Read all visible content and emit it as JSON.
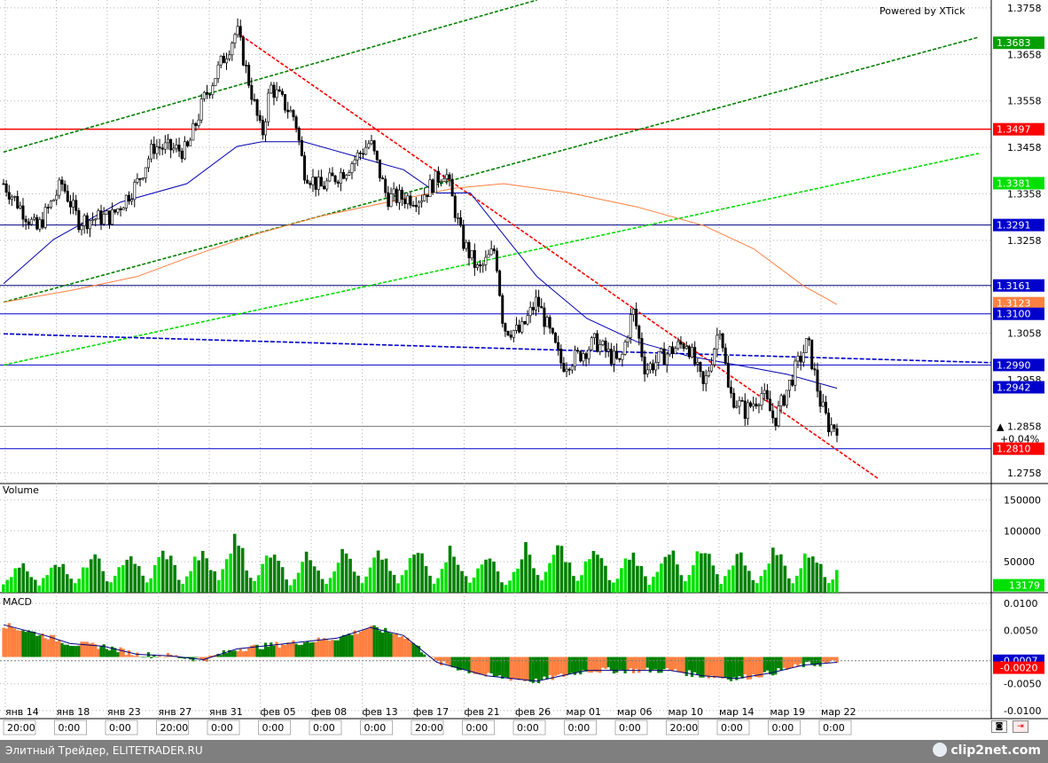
{
  "watermark": "Powered by XTick",
  "panels": {
    "volume": "Volume",
    "macd": "MACD"
  },
  "footer": {
    "left": "Элитный Трейдер, ELITETRADER.RU",
    "logo": "clip2net.com"
  },
  "icons": [
    "camera-icon",
    "exit-icon"
  ],
  "chart_data": {
    "type": "candlestick",
    "price_axis": {
      "ticks": [
        "1.3758",
        "1.3658",
        "1.3558",
        "1.3458",
        "1.3358",
        "1.3258",
        "1.3158",
        "1.3058",
        "1.2958",
        "1.2858",
        "1.2758"
      ],
      "range": [
        1.2735,
        1.3775
      ]
    },
    "price_tags": [
      {
        "value": 1.3683,
        "text": "1.3683",
        "bg": "#00a000",
        "fg": "#ffffff"
      },
      {
        "value": 1.3497,
        "text": "1.3497",
        "bg": "#ff0000",
        "fg": "#ffffff"
      },
      {
        "value": 1.3381,
        "text": "1.3381",
        "bg": "#00e000",
        "fg": "#ffffff"
      },
      {
        "value": 1.3291,
        "text": "1.3291",
        "bg": "#0000cc",
        "fg": "#ffffff"
      },
      {
        "value": 1.3161,
        "text": "1.3161",
        "bg": "#0000cc",
        "fg": "#ffffff"
      },
      {
        "value": 1.3123,
        "text": "1.3123",
        "bg": "#ff8040",
        "fg": "#ffffff"
      },
      {
        "value": 1.31,
        "text": "1.3100",
        "bg": "#0000cc",
        "fg": "#ffffff"
      },
      {
        "value": 1.299,
        "text": "1.2990",
        "bg": "#0000cc",
        "fg": "#ffffff"
      },
      {
        "value": 1.2942,
        "text": "1.2942",
        "bg": "#0000cc",
        "fg": "#ffffff"
      },
      {
        "value": 1.2858,
        "text": "1.2858",
        "bg": "#ffffff",
        "fg": "#000000",
        "marker": "▲"
      },
      {
        "value": 1.281,
        "text": "1.2810",
        "bg": "#ff0000",
        "fg": "#ffffff"
      }
    ],
    "change_text": "+0.04%",
    "horizontal_levels": [
      {
        "value": 1.3497,
        "color": "#ff0000"
      },
      {
        "value": 1.3291,
        "color": "#000080"
      },
      {
        "value": 1.3161,
        "color": "#000080"
      },
      {
        "value": 1.31,
        "color": "#0000cc"
      },
      {
        "value": 1.299,
        "color": "#0000cc"
      },
      {
        "value": 1.2858,
        "color": "#808080"
      },
      {
        "value": 1.281,
        "color": "#0000cc"
      }
    ],
    "ohlc_anchors": [
      {
        "t": 0,
        "v": 1.338
      },
      {
        "t": 0.04,
        "v": 1.328
      },
      {
        "t": 0.07,
        "v": 1.338
      },
      {
        "t": 0.09,
        "v": 1.33
      },
      {
        "t": 0.13,
        "v": 1.331
      },
      {
        "t": 0.16,
        "v": 1.338
      },
      {
        "t": 0.18,
        "v": 1.346
      },
      {
        "t": 0.22,
        "v": 1.345
      },
      {
        "t": 0.24,
        "v": 1.356
      },
      {
        "t": 0.28,
        "v": 1.371
      },
      {
        "t": 0.31,
        "v": 1.348
      },
      {
        "t": 0.32,
        "v": 1.359
      },
      {
        "t": 0.35,
        "v": 1.352
      },
      {
        "t": 0.36,
        "v": 1.341
      },
      {
        "t": 0.38,
        "v": 1.337
      },
      {
        "t": 0.41,
        "v": 1.341
      },
      {
        "t": 0.44,
        "v": 1.347
      },
      {
        "t": 0.46,
        "v": 1.335
      },
      {
        "t": 0.5,
        "v": 1.335
      },
      {
        "t": 0.53,
        "v": 1.341
      },
      {
        "t": 0.55,
        "v": 1.326
      },
      {
        "t": 0.57,
        "v": 1.319
      },
      {
        "t": 0.59,
        "v": 1.324
      },
      {
        "t": 0.6,
        "v": 1.307
      },
      {
        "t": 0.62,
        "v": 1.306
      },
      {
        "t": 0.64,
        "v": 1.313
      },
      {
        "t": 0.67,
        "v": 1.299
      },
      {
        "t": 0.69,
        "v": 1.301
      },
      {
        "t": 0.71,
        "v": 1.304
      },
      {
        "t": 0.74,
        "v": 1.299
      },
      {
        "t": 0.755,
        "v": 1.311
      },
      {
        "t": 0.77,
        "v": 1.298
      },
      {
        "t": 0.8,
        "v": 1.302
      },
      {
        "t": 0.82,
        "v": 1.304
      },
      {
        "t": 0.84,
        "v": 1.294
      },
      {
        "t": 0.86,
        "v": 1.308
      },
      {
        "t": 0.87,
        "v": 1.293
      },
      {
        "t": 0.89,
        "v": 1.289
      },
      {
        "t": 0.91,
        "v": 1.293
      },
      {
        "t": 0.925,
        "v": 1.287
      },
      {
        "t": 0.95,
        "v": 1.298
      },
      {
        "t": 0.965,
        "v": 1.304
      },
      {
        "t": 0.98,
        "v": 1.291
      },
      {
        "t": 0.99,
        "v": 1.286
      },
      {
        "t": 1.0,
        "v": 1.2858
      }
    ],
    "moving_average_blue": [
      [
        0.0,
        1.3165
      ],
      [
        0.06,
        1.326
      ],
      [
        0.14,
        1.334
      ],
      [
        0.22,
        1.338
      ],
      [
        0.28,
        1.346
      ],
      [
        0.31,
        1.347
      ],
      [
        0.36,
        1.347
      ],
      [
        0.42,
        1.344
      ],
      [
        0.48,
        1.341
      ],
      [
        0.52,
        1.336
      ],
      [
        0.56,
        1.336
      ],
      [
        0.6,
        1.327
      ],
      [
        0.64,
        1.318
      ],
      [
        0.7,
        1.309
      ],
      [
        0.76,
        1.304
      ],
      [
        0.82,
        1.301
      ],
      [
        0.88,
        1.299
      ],
      [
        0.94,
        1.297
      ],
      [
        1.0,
        1.294
      ]
    ],
    "moving_average_orange": [
      [
        0.0,
        1.3125
      ],
      [
        0.08,
        1.315
      ],
      [
        0.16,
        1.318
      ],
      [
        0.22,
        1.322
      ],
      [
        0.3,
        1.327
      ],
      [
        0.38,
        1.331
      ],
      [
        0.46,
        1.334
      ],
      [
        0.54,
        1.337
      ],
      [
        0.6,
        1.338
      ],
      [
        0.68,
        1.336
      ],
      [
        0.76,
        1.333
      ],
      [
        0.84,
        1.329
      ],
      [
        0.9,
        1.324
      ],
      [
        0.96,
        1.316
      ],
      [
        1.0,
        1.312
      ]
    ],
    "dashed_blue_line": [
      [
        0.0,
        1.3057
      ],
      [
        1.0,
        1.3
      ]
    ],
    "trend_lines": [
      {
        "color": "#008000",
        "from": [
          0.0,
          1.3448
        ],
        "to": [
          0.64,
          1.3775
        ]
      },
      {
        "color": "#008000",
        "from": [
          0.0,
          1.3125
        ],
        "to": [
          1.17,
          1.3695
        ]
      },
      {
        "color": "#00dd00",
        "from": [
          0.0,
          1.299
        ],
        "to": [
          1.17,
          1.3445
        ]
      },
      {
        "color": "#ff0000",
        "from": [
          0.28,
          1.3705
        ],
        "to": [
          1.05,
          1.2745
        ]
      }
    ],
    "volume_axis": {
      "ticks": [
        "150000",
        "100000",
        "50000"
      ],
      "range": [
        0,
        175000
      ]
    },
    "volume_tag": "13179",
    "volume_peaks": [
      55000,
      60000,
      65000,
      70000,
      75000,
      70000,
      100000,
      80000,
      68000,
      75000,
      70000,
      72000,
      80000,
      72000,
      60000,
      85000,
      82000,
      70000,
      72000,
      80000,
      75000,
      70000,
      78000,
      76000
    ],
    "macd_axis": {
      "ticks": [
        "0.0100",
        "0.0050",
        "-0.0050",
        "-0.0100"
      ],
      "range": [
        -0.0115,
        0.0115
      ]
    },
    "macd_tags": [
      {
        "value": -0.0007,
        "text": "-0.0007",
        "bg": "#0000cc",
        "fg": "#ffffff"
      },
      {
        "value": -0.002,
        "text": "-0.0020",
        "bg": "#ff0000",
        "fg": "#ffffff"
      }
    ],
    "macd_signal_level": -0.0007,
    "macd_line": [
      [
        0.0,
        0.006
      ],
      [
        0.05,
        0.004
      ],
      [
        0.08,
        0.0025
      ],
      [
        0.12,
        0.002
      ],
      [
        0.16,
        0.0005
      ],
      [
        0.2,
        0.0002
      ],
      [
        0.24,
        -0.0005
      ],
      [
        0.28,
        0.0015
      ],
      [
        0.34,
        0.0025
      ],
      [
        0.4,
        0.0035
      ],
      [
        0.44,
        0.0055
      ],
      [
        0.48,
        0.004
      ],
      [
        0.52,
        -0.001
      ],
      [
        0.58,
        -0.0035
      ],
      [
        0.64,
        -0.0045
      ],
      [
        0.7,
        -0.0025
      ],
      [
        0.76,
        -0.0025
      ],
      [
        0.8,
        -0.0025
      ],
      [
        0.84,
        -0.0035
      ],
      [
        0.88,
        -0.004
      ],
      [
        0.92,
        -0.003
      ],
      [
        0.96,
        -0.0015
      ],
      [
        1.0,
        -0.001
      ]
    ],
    "x_axis": {
      "dates": [
        "янв 14",
        "янв 18",
        "янв 23",
        "янв 27",
        "янв 31",
        "фев 05",
        "фев 08",
        "фев 13",
        "фев 17",
        "фев 21",
        "фев 26",
        "мар 01",
        "мар 06",
        "мар 10",
        "мар 14",
        "мар 19",
        "мар 22"
      ],
      "times": [
        "20:00",
        "0:00",
        "0:00",
        "20:00",
        "0:00",
        "0:00",
        "0:00",
        "0:00",
        "20:00",
        "0:00",
        "0:00",
        "0:00",
        "0:00",
        "20:00",
        "0:00",
        "0:00",
        "0:00"
      ]
    }
  }
}
